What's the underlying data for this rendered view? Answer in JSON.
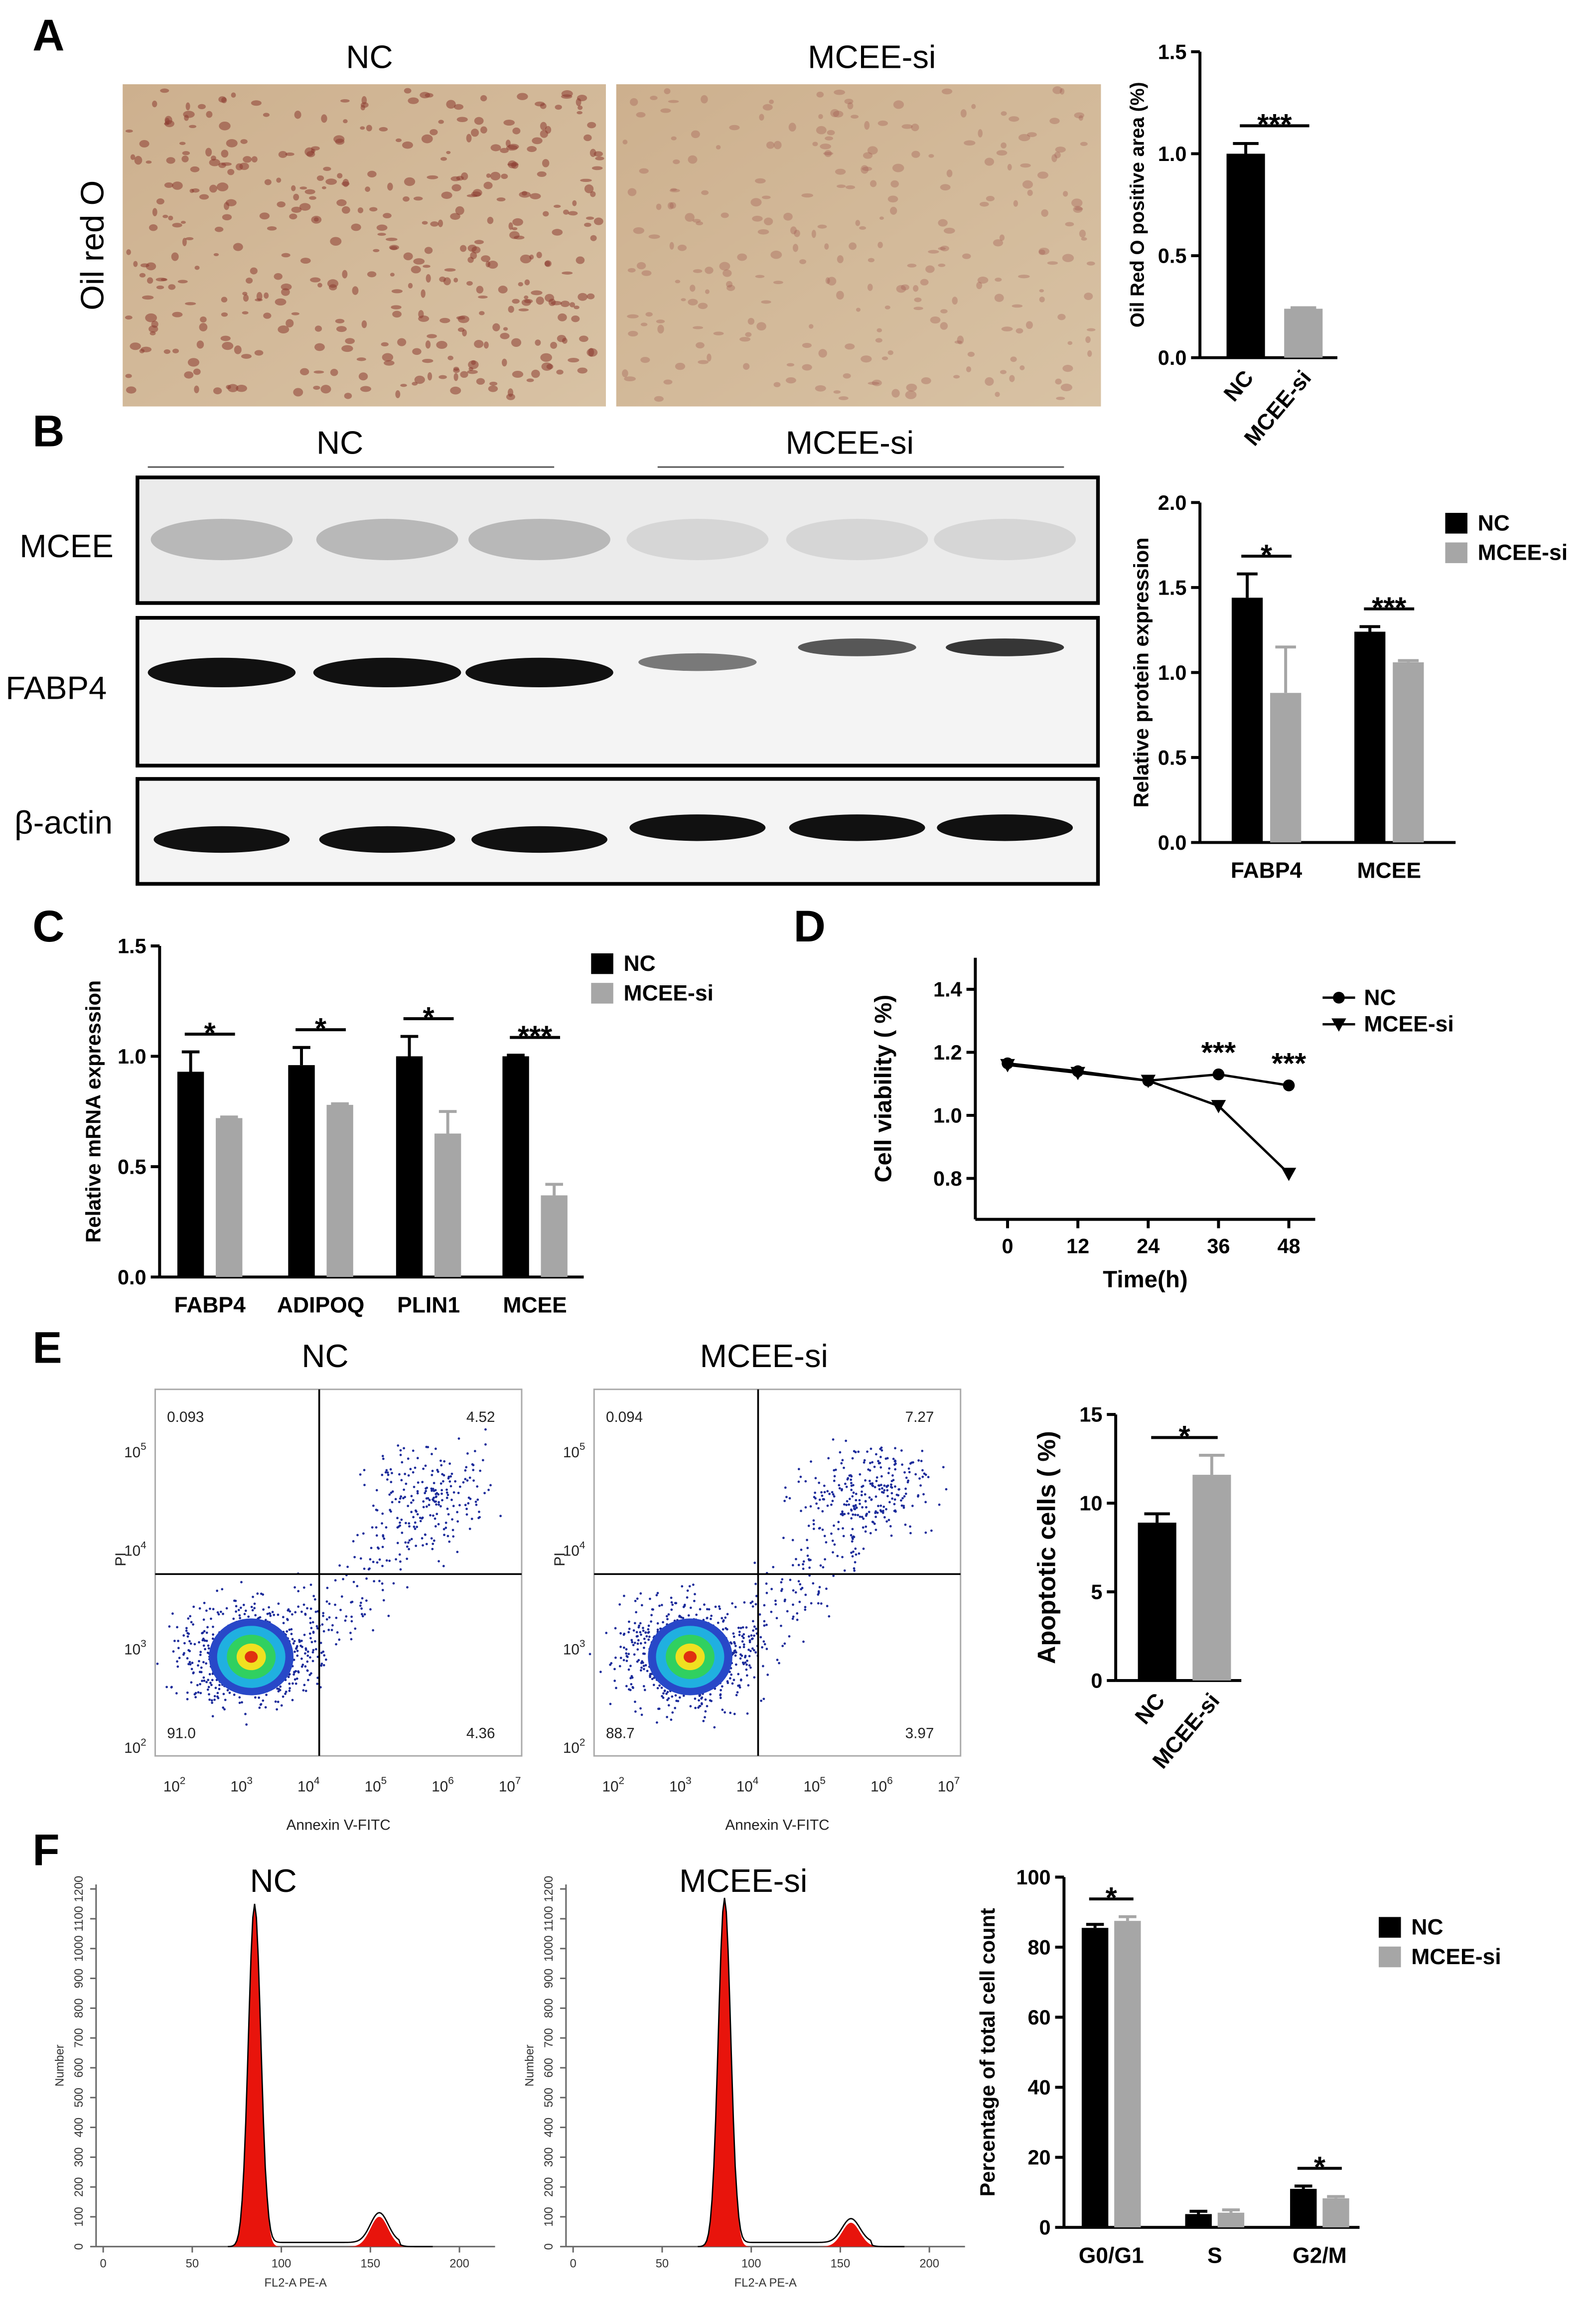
{
  "panel_labels": [
    "A",
    "B",
    "C",
    "D",
    "E",
    "F"
  ],
  "oil_red_o": {
    "row_label": "Oil red O",
    "image_labels": [
      "NC",
      "MCEE-si"
    ]
  },
  "western_blot": {
    "group_labels": [
      "NC",
      "MCEE-si"
    ],
    "row_labels": [
      "MCEE",
      "FABP4",
      "β-actin"
    ]
  },
  "flow_axes": {
    "xlabel": "Annexin V-FITC",
    "ylabel": "PI",
    "tick_base": "10",
    "xtick_exponents": [
      "2",
      "3",
      "4",
      "5",
      "6",
      "7"
    ],
    "ytick_exponents": [
      "2",
      "3",
      "4",
      "5"
    ]
  },
  "flow_plots": [
    {
      "title": "NC",
      "quadrants": [
        "0.093",
        "4.52",
        "91.0",
        "4.36"
      ]
    },
    {
      "title": "MCEE-si",
      "quadrants": [
        "0.094",
        "7.27",
        "88.7",
        "3.97"
      ]
    }
  ],
  "histogram_axes": {
    "xlabel": "FL2-A PE-A",
    "ylabel": "Number",
    "xlim": [
      -4,
      220
    ],
    "ylim": [
      0,
      1215
    ],
    "xticks": [
      0,
      50,
      100,
      150,
      200
    ],
    "yticks": [
      0,
      100,
      200,
      300,
      400,
      500,
      600,
      700,
      800,
      900,
      1000,
      1100,
      1200
    ]
  },
  "histograms": [
    {
      "title": "NC",
      "peaks": [
        {
          "x": 85,
          "count": 1150
        },
        {
          "x": 155,
          "count": 100
        }
      ]
    },
    {
      "title": "MCEE-si",
      "peaks": [
        {
          "x": 85,
          "count": 1170
        },
        {
          "x": 156,
          "count": 80
        }
      ]
    }
  ],
  "chart_data": [
    {
      "type": "bar",
      "ylabel": "Oil Red O positive area (%)",
      "categories": [
        "NC",
        "MCEE-si"
      ],
      "values": [
        1.0,
        0.24
      ],
      "errors": [
        0.05,
        0.005
      ],
      "colors": [
        "#000000",
        "#a6a6a6"
      ],
      "ylim": [
        0,
        1.5
      ],
      "yticks": [
        {
          "value": 0,
          "label": "0.0"
        },
        0.5,
        {
          "value": 1,
          "label": "1.0"
        },
        1.5
      ],
      "significance": "***"
    },
    {
      "type": "bar",
      "ylabel": "Relative protein expression",
      "categories": [
        "FABP4",
        "MCEE"
      ],
      "series": [
        {
          "name": "NC",
          "color": "#000000",
          "values": [
            1.44,
            1.24
          ],
          "errors": [
            0.14,
            0.03
          ]
        },
        {
          "name": "MCEE-si",
          "color": "#a6a6a6",
          "values": [
            0.88,
            1.06
          ],
          "errors": [
            0.27,
            0.01
          ]
        }
      ],
      "ylim": [
        0,
        2
      ],
      "yticks": [
        {
          "value": 0,
          "label": "0.0"
        },
        0.5,
        {
          "value": 1,
          "label": "1.0"
        },
        1.5,
        {
          "value": 2,
          "label": "2.0"
        }
      ],
      "significance": [
        "*",
        "***"
      ]
    },
    {
      "type": "bar",
      "ylabel": "Relative mRNA expression",
      "categories": [
        "FABP4",
        "ADIPOQ",
        "PLIN1",
        "MCEE"
      ],
      "series": [
        {
          "name": "NC",
          "color": "#000000",
          "values": [
            0.93,
            0.96,
            1.0,
            1.0
          ],
          "errors": [
            0.09,
            0.08,
            0.09,
            0.005
          ]
        },
        {
          "name": "MCEE-si",
          "color": "#a6a6a6",
          "values": [
            0.72,
            0.78,
            0.65,
            0.37
          ],
          "errors": [
            0.005,
            0.005,
            0.1,
            0.05
          ]
        }
      ],
      "ylim": [
        0,
        1.5
      ],
      "yticks": [
        {
          "value": 0,
          "label": "0.0"
        },
        0.5,
        {
          "value": 1,
          "label": "1.0"
        },
        1.5
      ],
      "significance": [
        "*",
        "*",
        "*",
        "***"
      ]
    },
    {
      "type": "line",
      "xlabel": "Time(h)",
      "ylabel": "Cell viability ( %)",
      "x": [
        0,
        12,
        24,
        36,
        48
      ],
      "series": [
        {
          "name": "NC",
          "color": "#000000",
          "marker": "circle",
          "values": [
            1.165,
            1.14,
            1.11,
            1.13,
            1.095
          ]
        },
        {
          "name": "MCEE-si",
          "color": "#000000",
          "marker": "triangle-down",
          "values": [
            1.16,
            1.135,
            1.11,
            1.03,
            0.815
          ]
        }
      ],
      "xlim": [
        -5.5,
        52.5
      ],
      "xticks": [
        0,
        12,
        24,
        36,
        48
      ],
      "ylim": [
        0.67,
        1.5
      ],
      "yticks": [
        0.8,
        {
          "value": 1,
          "label": "1.0"
        },
        1.2,
        1.4
      ],
      "annotations": [
        {
          "x": 36,
          "text": "***"
        },
        {
          "x": 48,
          "text": "***"
        }
      ]
    },
    {
      "type": "bar",
      "ylabel": "Apoptotic cells ( %)",
      "categories": [
        "NC",
        "MCEE-si"
      ],
      "values": [
        8.9,
        11.6
      ],
      "errors": [
        0.5,
        1.1
      ],
      "colors": [
        "#000000",
        "#a6a6a6"
      ],
      "ylim": [
        0,
        15
      ],
      "yticks": [
        0,
        5,
        10,
        15
      ],
      "significance": "*"
    },
    {
      "type": "bar",
      "ylabel": "Percentage of total cell count",
      "categories": [
        "G0/G1",
        "S",
        "G2/M"
      ],
      "series": [
        {
          "name": "NC",
          "color": "#000000",
          "values": [
            85.5,
            3.8,
            11
          ],
          "errors": [
            1,
            0.8,
            0.8
          ]
        },
        {
          "name": "MCEE-si",
          "color": "#a6a6a6",
          "values": [
            87.5,
            4.2,
            8.3
          ],
          "errors": [
            1.2,
            0.8,
            0.5
          ]
        }
      ],
      "ylim": [
        0,
        100
      ],
      "yticks": [
        0,
        20,
        40,
        60,
        80,
        100
      ],
      "significance": [
        "*",
        null,
        "*"
      ]
    }
  ]
}
